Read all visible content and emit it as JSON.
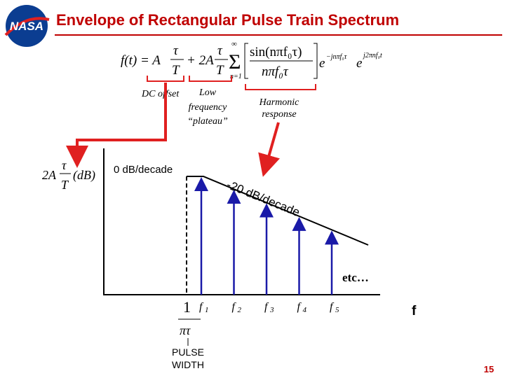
{
  "header": {
    "logo": "NASA",
    "title": "Envelope of Rectangular Pulse Train Spectrum"
  },
  "equation": {
    "lhs": "f(t) = A",
    "tau1": "τ",
    "T1": "T",
    "plus": "+ 2A",
    "tau2": "τ",
    "T2": "T",
    "sum_upper": "∞",
    "sigma": "Σ",
    "sum_lower": "n=1",
    "numerator": "sin(nπf₀τ)",
    "denominator": "nπf₀τ",
    "exp1": "e",
    "exp1_power": "−jnπf₀τ",
    "exp2": "e",
    "exp2_power": "j2πnf₀t"
  },
  "labels": {
    "dc_offset": "DC offset",
    "low_frequency": [
      "Low",
      "frequency",
      "“plateau”"
    ],
    "harmonic": [
      "Harmonic",
      "response"
    ]
  },
  "plot": {
    "y_label": {
      "coef": "2A",
      "num": "τ",
      "den": "T",
      "unit": "(dB)"
    },
    "flat_slope": "0 dB/decade",
    "falling_slope": "-20 dB/decade",
    "etc": "etc…",
    "axis": "f",
    "harmonics": [
      {
        "symbol": "f",
        "index": "1"
      },
      {
        "symbol": "f",
        "index": "2"
      },
      {
        "symbol": "f",
        "index": "3"
      },
      {
        "symbol": "f",
        "index": "4"
      },
      {
        "symbol": "f",
        "index": "5"
      }
    ],
    "corner": {
      "num": "1",
      "den": "πτ"
    },
    "pulse_width": [
      "PULSE",
      "WIDTH"
    ]
  },
  "page_number": "15"
}
